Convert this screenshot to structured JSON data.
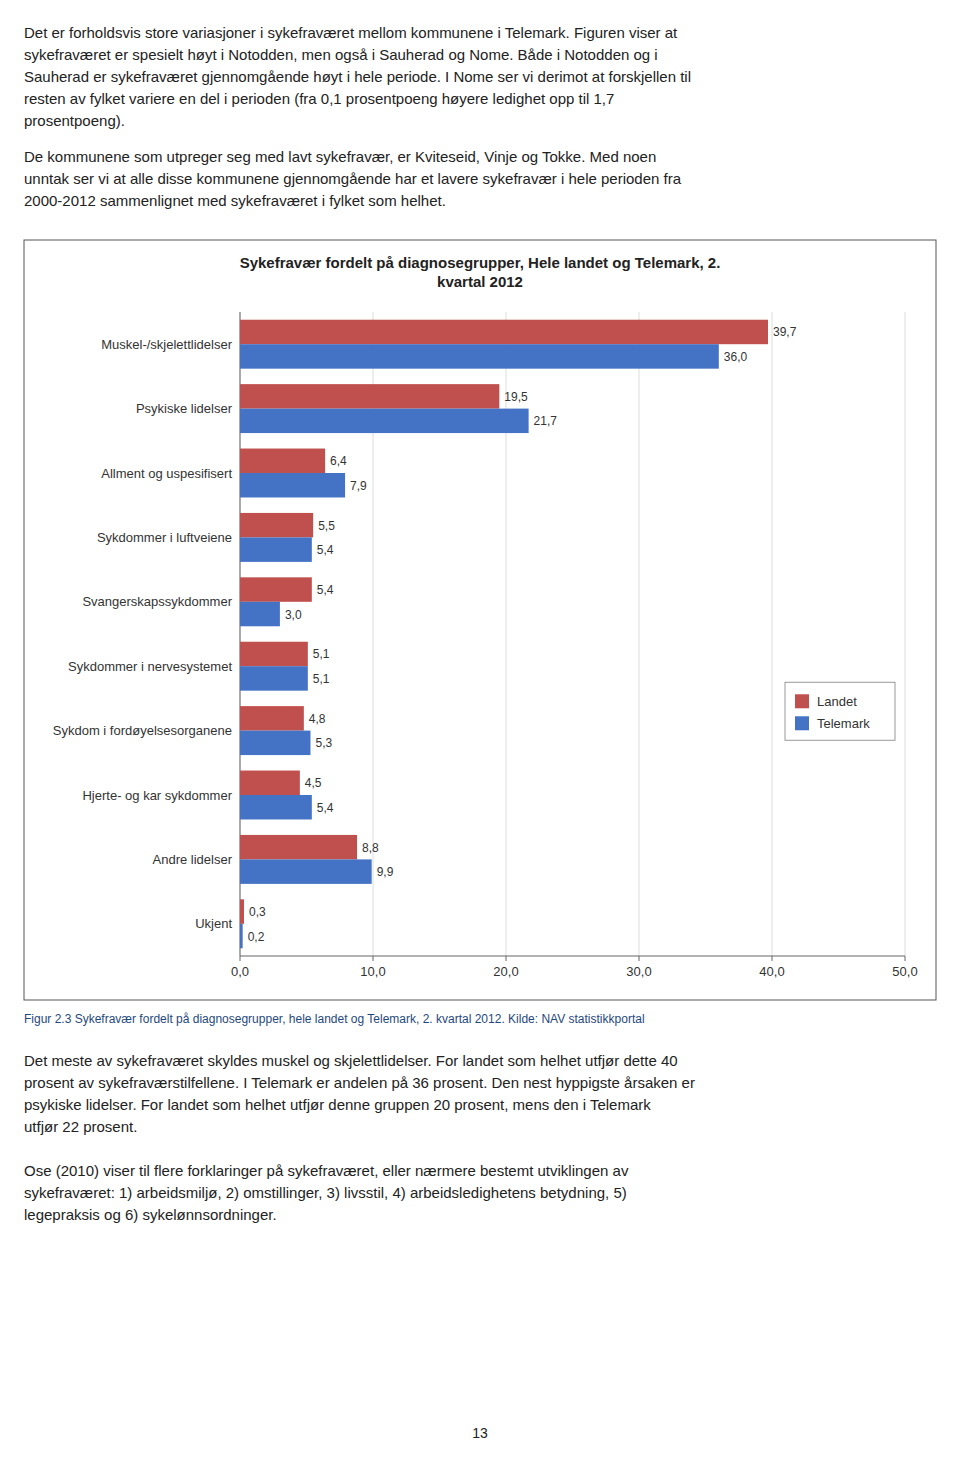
{
  "chart_data": {
    "type": "bar",
    "orientation": "horizontal",
    "title": "Sykefravær fordelt på diagnosegrupper, Hele landet og Telemark, 2.\nkvartal 2012",
    "categories": [
      "Muskel-/skjelettlidelser",
      "Psykiske lidelser",
      "Allment og uspesifisert",
      "Sykdommer i luftveiene",
      "Svangerskapssykdommer",
      "Sykdommer i nervesystemet",
      "Sykdom i fordøyelsesorganene",
      "Hjerte- og kar sykdommer",
      "Andre lidelser",
      "Ukjent"
    ],
    "series": [
      {
        "name": "Landet",
        "color": "#C0504D",
        "values": [
          39.7,
          19.5,
          6.4,
          5.5,
          5.4,
          5.1,
          4.8,
          4.5,
          8.8,
          0.3
        ],
        "value_labels": [
          "39,7",
          "19,5",
          "6,4",
          "5,5",
          "5,4",
          "5,1",
          "4,8",
          "4,5",
          "8,8",
          "0,3"
        ]
      },
      {
        "name": "Telemark",
        "color": "#4472C4",
        "values": [
          36.0,
          21.7,
          7.9,
          5.4,
          3.0,
          5.1,
          5.3,
          5.4,
          9.9,
          0.2
        ],
        "value_labels": [
          "36,0",
          "21,7",
          "7,9",
          "5,4",
          "3,0",
          "5,1",
          "5,3",
          "5,4",
          "9,9",
          "0,2"
        ]
      }
    ],
    "xlim": [
      0,
      50
    ],
    "xticks": [
      {
        "value": 0,
        "label": "0,0"
      },
      {
        "value": 10,
        "label": "10,0"
      },
      {
        "value": 20,
        "label": "20,0"
      },
      {
        "value": 30,
        "label": "30,0"
      },
      {
        "value": 40,
        "label": "40,0"
      },
      {
        "value": 50,
        "label": "50,0"
      }
    ],
    "grid": true,
    "legend": "right",
    "data_labels": true
  },
  "page": {
    "paragraphs_before": [
      [
        "Det er forholdsvis store variasjoner i sykefraværet mellom kommunene i Telemark. Figuren viser at",
        "sykefraværet er spesielt høyt i Notodden, men også i Sauherad og Nome. Både i Notodden og i",
        "Sauherad er sykefraværet gjennomgående høyt i hele periode. I Nome ser vi derimot at forskjellen til",
        "resten av fylket variere en del i perioden (fra 0,1 prosentpoeng høyere ledighet opp til 1,7",
        "prosentpoeng)."
      ],
      [
        "De kommunene som utpreger seg med lavt sykefravær, er Kviteseid, Vinje og Tokke. Med noen",
        "unntak ser vi at alle disse kommunene gjennomgående har et lavere sykefravær i hele perioden fra",
        "2000-2012 sammenlignet med sykefraværet i fylket som helhet."
      ]
    ],
    "caption": "Figur 2.3 Sykefravær fordelt på diagnosegrupper, hele landet og Telemark, 2. kvartal 2012. Kilde: NAV statistikkportal",
    "paragraphs_after": [
      [
        "Det meste av sykefraværet skyldes muskel og skjelettlidelser. For landet som helhet utfjør dette 40",
        "prosent av sykefraværstilfellene. I Telemark er andelen på 36 prosent. Den nest hyppigste årsaken er",
        "psykiske lidelser. For landet som helhet utfjør denne gruppen 20 prosent, mens den i Telemark",
        "utfjør 22 prosent."
      ],
      [
        "Ose (2010) viser til flere forklaringer på sykefraværet, eller nærmere bestemt utviklingen av",
        "sykefraværet: 1) arbeidsmiljø, 2) omstillinger, 3) livsstil, 4) arbeidsledighetens betydning, 5)",
        "legepraksis og 6) sykelønnsordninger."
      ]
    ],
    "page_number": "13"
  }
}
